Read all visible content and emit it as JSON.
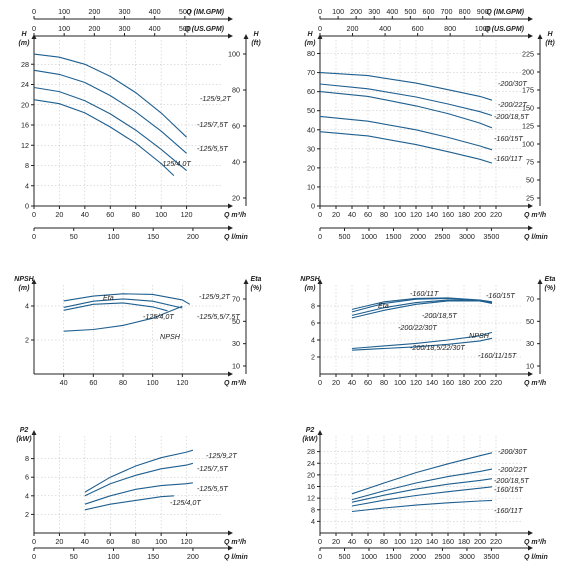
{
  "chart_data": [
    {
      "type": "line",
      "id": "H125",
      "units_top_imp": "Q (IM.GPM)",
      "units_top_us": "Q (US.GPM)",
      "ylabel_left": "H",
      "ylabel_left_unit": "(m)",
      "ylabel_right": "H",
      "ylabel_right_unit": "(ft)",
      "xlabel": "Q m³/h",
      "xlabel_bottom": "Q l/min",
      "xlim": [
        0,
        140
      ],
      "ylim": [
        0,
        32
      ],
      "x_ticks": [
        0,
        20,
        40,
        60,
        80,
        100,
        120
      ],
      "y_ticks": [
        0,
        4,
        8,
        12,
        16,
        20,
        24,
        28
      ],
      "right_ticks": [
        20,
        40,
        60,
        80,
        100
      ],
      "imp_ticks": [
        0,
        100,
        200,
        300,
        400,
        500
      ],
      "us_ticks": [
        0,
        100,
        200,
        300,
        400,
        500
      ],
      "lmin_ticks": [
        0,
        50,
        100,
        150,
        200
      ],
      "series": [
        {
          "name": "-125/9,2T",
          "x": [
            0,
            20,
            40,
            60,
            80,
            100,
            120
          ],
          "y": [
            30,
            29.4,
            28.0,
            25.6,
            22.4,
            18.4,
            13.6
          ]
        },
        {
          "name": "-125/7,5T",
          "x": [
            0,
            20,
            40,
            60,
            80,
            100,
            120
          ],
          "y": [
            26.8,
            26.0,
            24.4,
            21.8,
            18.6,
            14.8,
            10.4
          ]
        },
        {
          "name": "-125/5,5T",
          "x": [
            0,
            20,
            40,
            60,
            80,
            100,
            120
          ],
          "y": [
            23.4,
            22.6,
            20.8,
            18.2,
            15.0,
            11.2,
            7.0
          ]
        },
        {
          "name": "-125/4,0T",
          "x": [
            0,
            20,
            40,
            60,
            80,
            100,
            110
          ],
          "y": [
            21.0,
            20.2,
            18.4,
            15.6,
            12.4,
            8.4,
            6.0
          ]
        }
      ]
    },
    {
      "type": "line",
      "id": "H200",
      "units_top_imp": "Q (IM.GPM)",
      "units_top_us": "Q (US.GPM)",
      "ylabel_left": "H",
      "ylabel_left_unit": "(m)",
      "ylabel_right": "H",
      "ylabel_right_unit": "(ft)",
      "xlabel": "Q m³/h",
      "xlabel_bottom": "Q l/min",
      "xlim": [
        0,
        240
      ],
      "ylim": [
        0,
        85
      ],
      "x_ticks": [
        0,
        20,
        40,
        60,
        80,
        100,
        120,
        140,
        160,
        180,
        200,
        220
      ],
      "y_ticks": [
        0,
        10,
        20,
        30,
        40,
        50,
        60,
        70,
        80
      ],
      "right_ticks": [
        25,
        50,
        75,
        100,
        125,
        150,
        175,
        200,
        225
      ],
      "imp_ticks": [
        0,
        100,
        200,
        300,
        400,
        500,
        600,
        700,
        800,
        900
      ],
      "us_ticks": [
        0,
        200,
        400,
        600,
        800,
        1000
      ],
      "lmin_ticks": [
        0,
        500,
        1000,
        1500,
        2000,
        2500,
        3000,
        3500
      ],
      "series": [
        {
          "name": "-200/30T",
          "x": [
            0,
            60,
            120,
            160,
            200,
            215
          ],
          "y": [
            70,
            68.4,
            64.5,
            61.0,
            57.5,
            55.5
          ]
        },
        {
          "name": "-200/22T",
          "x": [
            0,
            60,
            120,
            160,
            200,
            215
          ],
          "y": [
            64,
            61.5,
            57.2,
            53.5,
            49.5,
            47.5
          ]
        },
        {
          "name": "-200/18,5T",
          "x": [
            0,
            60,
            120,
            160,
            200,
            215
          ],
          "y": [
            60,
            57.5,
            52.5,
            48.5,
            43.5,
            41.0
          ]
        },
        {
          "name": "-160/15T",
          "x": [
            0,
            60,
            120,
            160,
            200,
            215
          ],
          "y": [
            47,
            44.5,
            40.0,
            36.0,
            31.5,
            29.5
          ]
        },
        {
          "name": "-160/11T",
          "x": [
            0,
            60,
            120,
            160,
            200,
            215
          ],
          "y": [
            39,
            36.8,
            32.2,
            28.5,
            24.5,
            22.5
          ]
        }
      ]
    },
    {
      "type": "line",
      "id": "N125",
      "ylabel_left": "NPSH",
      "ylabel_left_unit": "(m)",
      "ylabel_right": "Eta",
      "ylabel_right_unit": "(%)",
      "xlabel": "Q m³/h",
      "xlim": [
        20,
        140
      ],
      "ylim": [
        0,
        5
      ],
      "x_ticks": [
        40,
        60,
        80,
        100,
        120
      ],
      "y_ticks": [
        2,
        4
      ],
      "right_ticks": [
        10,
        30,
        50,
        70
      ],
      "annotations": [
        "Eta",
        "NPSH"
      ],
      "series": [
        {
          "name": "-125/9,2T",
          "x": [
            40,
            60,
            80,
            100,
            120,
            125
          ],
          "y": [
            4.3,
            4.58,
            4.72,
            4.68,
            4.36,
            4.1
          ]
        },
        {
          "name": "-125/5,5/7,5T",
          "x": [
            40,
            60,
            80,
            100,
            120
          ],
          "y": [
            3.92,
            4.28,
            4.42,
            4.28,
            3.88
          ]
        },
        {
          "name": "-125/4,0T",
          "x": [
            40,
            60,
            80,
            100,
            110
          ],
          "y": [
            3.75,
            4.1,
            4.18,
            3.95,
            3.72
          ]
        },
        {
          "name": "NPSH",
          "x": [
            40,
            60,
            80,
            100,
            120
          ],
          "y": [
            2.52,
            2.62,
            2.86,
            3.28,
            3.98
          ]
        }
      ]
    },
    {
      "type": "line",
      "id": "N200",
      "ylabel_left": "NPSH",
      "ylabel_left_unit": "(m)",
      "ylabel_right": "Eta",
      "ylabel_right_unit": "(%)",
      "xlabel": "Q m³/h",
      "xlim": [
        0,
        240
      ],
      "ylim": [
        0,
        10
      ],
      "x_ticks": [
        0,
        20,
        40,
        60,
        80,
        100,
        120,
        140,
        160,
        180,
        200,
        220
      ],
      "y_ticks": [
        2,
        4,
        6,
        8
      ],
      "right_ticks": [
        10,
        30,
        50,
        70
      ],
      "annotations": [
        "Eta",
        "NPSH"
      ],
      "series": [
        {
          "name": "-160/11T",
          "x": [
            40,
            80,
            120,
            160,
            200,
            215
          ],
          "y": [
            7.3,
            8.3,
            8.8,
            8.9,
            8.6,
            8.3
          ]
        },
        {
          "name": "-160/15T",
          "x": [
            40,
            80,
            120,
            160,
            200,
            215
          ],
          "y": [
            7.6,
            8.5,
            8.9,
            8.95,
            8.7,
            8.5
          ]
        },
        {
          "name": "-200/18,5T",
          "x": [
            40,
            80,
            120,
            160,
            200,
            215
          ],
          "y": [
            6.9,
            7.8,
            8.4,
            8.7,
            8.6,
            8.4
          ]
        },
        {
          "name": "-200/22/30T",
          "x": [
            40,
            80,
            120,
            160,
            200,
            215
          ],
          "y": [
            6.6,
            7.5,
            8.2,
            8.6,
            8.6,
            8.4
          ]
        },
        {
          "name": "-200/18,5/22/30T",
          "x": [
            40,
            80,
            120,
            160,
            200,
            215
          ],
          "y": [
            3.0,
            3.3,
            3.6,
            4.0,
            4.5,
            4.9
          ]
        },
        {
          "name": "-160/11/15T",
          "x": [
            40,
            80,
            120,
            160,
            200,
            215
          ],
          "y": [
            2.8,
            3.0,
            3.2,
            3.5,
            3.9,
            4.2
          ]
        }
      ]
    },
    {
      "type": "line",
      "id": "P125",
      "ylabel_left": "P2",
      "ylabel_left_unit": "(kW)",
      "xlabel": "Q m³/h",
      "xlabel_bottom": "Q l/min",
      "xlim": [
        0,
        140
      ],
      "ylim": [
        0,
        10
      ],
      "x_ticks": [
        0,
        20,
        40,
        60,
        80,
        100,
        120
      ],
      "y_ticks": [
        2,
        4,
        6,
        8
      ],
      "lmin_ticks": [
        0,
        50,
        100,
        150,
        200
      ],
      "series": [
        {
          "name": "-125/9,2T",
          "x": [
            40,
            60,
            80,
            100,
            120,
            125
          ],
          "y": [
            4.4,
            6.0,
            7.2,
            8.1,
            8.7,
            8.9
          ]
        },
        {
          "name": "-125/7,5T",
          "x": [
            40,
            60,
            80,
            100,
            120,
            125
          ],
          "y": [
            4.0,
            5.3,
            6.2,
            6.9,
            7.3,
            7.5
          ]
        },
        {
          "name": "-125/5,5T",
          "x": [
            40,
            60,
            80,
            100,
            120,
            125
          ],
          "y": [
            3.1,
            4.0,
            4.7,
            5.1,
            5.3,
            5.4
          ]
        },
        {
          "name": "-125/4,0T",
          "x": [
            40,
            60,
            80,
            100,
            110
          ],
          "y": [
            2.5,
            3.1,
            3.5,
            3.9,
            4.0
          ]
        }
      ]
    },
    {
      "type": "line",
      "id": "P200",
      "ylabel_left": "P2",
      "ylabel_left_unit": "(kW)",
      "xlabel": "Q m³/h",
      "xlabel_bottom": "Q l/min",
      "xlim": [
        0,
        240
      ],
      "ylim": [
        0,
        32
      ],
      "x_ticks": [
        0,
        20,
        40,
        60,
        80,
        100,
        120,
        140,
        160,
        180,
        200,
        220
      ],
      "y_ticks": [
        4,
        8,
        12,
        16,
        20,
        24,
        28
      ],
      "lmin_ticks": [
        0,
        500,
        1000,
        1500,
        2000,
        2500,
        3000,
        3500
      ],
      "series": [
        {
          "name": "-200/30T",
          "x": [
            40,
            80,
            120,
            160,
            200,
            215
          ],
          "y": [
            13.5,
            17.2,
            20.8,
            23.8,
            26.6,
            27.6
          ]
        },
        {
          "name": "-200/22T",
          "x": [
            40,
            80,
            120,
            160,
            200,
            215
          ],
          "y": [
            11.5,
            14.5,
            17.2,
            19.4,
            21.2,
            22.0
          ]
        },
        {
          "name": "-200/18,5T",
          "x": [
            40,
            80,
            120,
            160,
            200,
            215
          ],
          "y": [
            10.6,
            13.0,
            15.1,
            16.8,
            18.1,
            18.7
          ]
        },
        {
          "name": "-160/15T",
          "x": [
            40,
            80,
            120,
            160,
            200,
            215
          ],
          "y": [
            9.3,
            11.3,
            12.9,
            14.2,
            15.4,
            15.9
          ]
        },
        {
          "name": "-160/11T",
          "x": [
            40,
            80,
            120,
            160,
            200,
            215
          ],
          "y": [
            7.4,
            8.6,
            9.6,
            10.4,
            11.0,
            11.2
          ]
        }
      ]
    }
  ]
}
